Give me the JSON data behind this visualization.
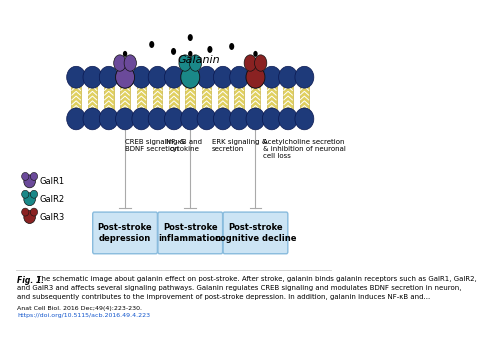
{
  "title": "Galanin",
  "bg_color": "#ffffff",
  "navy": "#1e3a7a",
  "gold": "#d4c060",
  "receptor_colors": {
    "GalR1": "#6b4a9a",
    "GalR2": "#1a8888",
    "GalR3": "#8a2222"
  },
  "legend_labels": [
    "GalR1",
    "GalR2",
    "GalR3"
  ],
  "legend_colors": [
    "#6b4a9a",
    "#1a8888",
    "#8a2222"
  ],
  "box_labels": [
    "Post-stroke\ndepression",
    "Post-stroke\ninflammation",
    "Post-stroke\ncognitive decline"
  ],
  "box_color": "#cce4f4",
  "box_border": "#88bbdd",
  "pathway_labels": [
    "CREB signaling &\nBDNF secretion",
    "NF-κB and\ncytokine",
    "ERK signaling &\nsecretion",
    "Acetylcholine secretion\n& inhibition of neuronal\ncell loss"
  ],
  "fig_caption_bold": "Fig. 1.",
  "fig_caption_rest": " The schematic image about galanin effect on post-stroke. After stroke, galanin binds galanin receptors such as GalR1, GalR2, and GalR3 and affects several signaling pathways. Galanin regulates CREB signaling and modulates BDNF secretion in neuron, and subsequently contributes to the improvement of post-stroke depression. In addition, galanin induces NF-κB and...",
  "journal_ref": "Anat Cell Biol. 2016 Dec;49(4):223-230.",
  "doi": "https://doi.org/10.5115/acb.2016.49.4.223"
}
